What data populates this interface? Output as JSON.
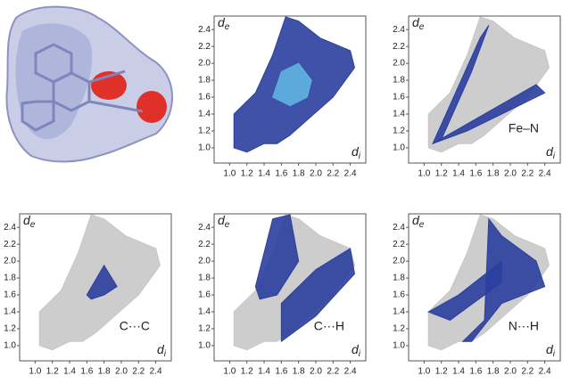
{
  "chart_data": [
    {
      "type": "fingerprint",
      "xlabel": {
        "symbol": "d",
        "subscript": "i"
      },
      "ylabel": {
        "symbol": "d",
        "subscript": "e"
      },
      "xlim": [
        0.82,
        2.58
      ],
      "ylim": [
        0.82,
        2.56
      ],
      "xticks": [
        {
          "value": 1,
          "label": "1.0"
        },
        1.2,
        1.4,
        1.6,
        1.8,
        {
          "value": 2,
          "label": "2.0"
        },
        2.2,
        2.4
      ],
      "yticks": [
        {
          "value": 1,
          "label": "1.0"
        },
        1.2,
        1.4,
        1.6,
        1.8,
        {
          "value": 2,
          "label": "2.0"
        },
        2.2,
        2.4
      ],
      "full": {
        "color": "#2b3f9e",
        "x": [
          1.05,
          1.05,
          1.3,
          1.5,
          1.65,
          1.8,
          2.05,
          2.4,
          2.45,
          2.2,
          1.7,
          1.55,
          1.4,
          1.2
        ],
        "y": [
          1.0,
          1.4,
          1.65,
          2.1,
          2.55,
          2.5,
          2.3,
          2.15,
          1.95,
          1.6,
          1.15,
          1.05,
          1.05,
          0.95
        ]
      },
      "highlights": [
        {
          "color": "#5fb3e0",
          "x": [
            1.5,
            1.6,
            1.8,
            1.95,
            1.9,
            1.7
          ],
          "y": [
            1.6,
            1.9,
            2.0,
            1.8,
            1.6,
            1.5
          ]
        }
      ]
    },
    {
      "type": "fingerprint",
      "label": "Fe–N",
      "xlabel": {
        "symbol": "d",
        "subscript": "i"
      },
      "ylabel": {
        "symbol": "d",
        "subscript": "e"
      },
      "xlim": [
        0.82,
        2.58
      ],
      "ylim": [
        0.82,
        2.56
      ],
      "xticks": [
        {
          "value": 1,
          "label": "1.0"
        },
        1.2,
        1.4,
        1.6,
        1.8,
        {
          "value": 2,
          "label": "2.0"
        },
        2.2,
        2.4
      ],
      "yticks": [
        {
          "value": 1,
          "label": "1.0"
        },
        1.2,
        1.4,
        1.6,
        1.8,
        {
          "value": 2,
          "label": "2.0"
        },
        2.2,
        2.4
      ],
      "full": {
        "color": "#c8c8c8",
        "x": [
          1.05,
          1.05,
          1.3,
          1.5,
          1.65,
          1.8,
          2.05,
          2.4,
          2.45,
          2.2,
          1.7,
          1.55,
          1.4,
          1.2
        ],
        "y": [
          1.0,
          1.4,
          1.65,
          2.1,
          2.55,
          2.5,
          2.3,
          2.15,
          1.95,
          1.6,
          1.15,
          1.05,
          1.05,
          0.95
        ]
      },
      "highlights": [
        {
          "color": "#2b3f9e",
          "x": [
            1.1,
            1.65,
            1.75,
            1.55,
            1.2
          ],
          "y": [
            1.05,
            2.3,
            2.45,
            1.9,
            1.1
          ]
        },
        {
          "color": "#2b3f9e",
          "x": [
            1.1,
            2.3,
            2.4,
            1.5
          ],
          "y": [
            1.05,
            1.75,
            1.65,
            1.2
          ]
        }
      ]
    },
    {
      "type": "fingerprint",
      "label": "C···C",
      "xlabel": {
        "symbol": "d",
        "subscript": "i"
      },
      "ylabel": {
        "symbol": "d",
        "subscript": "e"
      },
      "xlim": [
        0.82,
        2.58
      ],
      "ylim": [
        0.82,
        2.56
      ],
      "xticks": [
        {
          "value": 1,
          "label": "1.0"
        },
        1.2,
        1.4,
        1.6,
        1.8,
        {
          "value": 2,
          "label": "2.0"
        },
        2.2,
        2.4
      ],
      "yticks": [
        {
          "value": 1,
          "label": "1.0"
        },
        1.2,
        1.4,
        1.6,
        1.8,
        {
          "value": 2,
          "label": "2.0"
        },
        2.2,
        2.4
      ],
      "full": {
        "color": "#c8c8c8",
        "x": [
          1.05,
          1.05,
          1.3,
          1.5,
          1.65,
          1.8,
          2.05,
          2.4,
          2.45,
          2.2,
          1.7,
          1.55,
          1.4,
          1.2
        ],
        "y": [
          1.0,
          1.4,
          1.65,
          2.1,
          2.55,
          2.5,
          2.3,
          2.15,
          1.95,
          1.6,
          1.15,
          1.05,
          1.05,
          0.95
        ]
      },
      "highlights": [
        {
          "color": "#2b3f9e",
          "x": [
            1.6,
            1.8,
            1.95,
            1.8,
            1.65
          ],
          "y": [
            1.6,
            1.95,
            1.7,
            1.6,
            1.55
          ]
        }
      ]
    },
    {
      "type": "fingerprint",
      "label": "C···H",
      "xlabel": {
        "symbol": "d",
        "subscript": "i"
      },
      "ylabel": {
        "symbol": "d",
        "subscript": "e"
      },
      "xlim": [
        0.82,
        2.58
      ],
      "ylim": [
        0.82,
        2.56
      ],
      "xticks": [
        {
          "value": 1,
          "label": "1.0"
        },
        1.2,
        1.4,
        1.6,
        1.8,
        {
          "value": 2,
          "label": "2.0"
        },
        2.2,
        2.4
      ],
      "yticks": [
        {
          "value": 1,
          "label": "1.0"
        },
        1.2,
        1.4,
        1.6,
        1.8,
        {
          "value": 2,
          "label": "2.0"
        },
        2.2,
        2.4
      ],
      "full": {
        "color": "#c8c8c8",
        "x": [
          1.05,
          1.05,
          1.3,
          1.5,
          1.65,
          1.8,
          2.05,
          2.4,
          2.45,
          2.2,
          1.7,
          1.55,
          1.4,
          1.2
        ],
        "y": [
          1.0,
          1.4,
          1.65,
          2.1,
          2.55,
          2.5,
          2.3,
          2.15,
          1.95,
          1.6,
          1.15,
          1.05,
          1.05,
          0.95
        ]
      },
      "highlights": [
        {
          "color": "#2b3f9e",
          "x": [
            1.5,
            1.7,
            1.8,
            1.55,
            1.35,
            1.3
          ],
          "y": [
            2.5,
            2.55,
            2.0,
            1.6,
            1.55,
            1.7
          ]
        },
        {
          "color": "#2b3f9e",
          "x": [
            1.6,
            2.0,
            2.4,
            2.45,
            2.0,
            1.6
          ],
          "y": [
            1.5,
            1.9,
            2.15,
            1.85,
            1.35,
            1.05
          ]
        }
      ]
    },
    {
      "type": "fingerprint",
      "label": "N···H",
      "xlabel": {
        "symbol": "d",
        "subscript": "i"
      },
      "ylabel": {
        "symbol": "d",
        "subscript": "e"
      },
      "xlim": [
        0.82,
        2.58
      ],
      "ylim": [
        0.82,
        2.56
      ],
      "xticks": [
        {
          "value": 1,
          "label": "1.0"
        },
        1.2,
        1.4,
        1.6,
        1.8,
        {
          "value": 2,
          "label": "2.0"
        },
        2.2,
        2.4
      ],
      "yticks": [
        {
          "value": 1,
          "label": "1.0"
        },
        1.2,
        1.4,
        1.6,
        1.8,
        {
          "value": 2,
          "label": "2.0"
        },
        2.2,
        2.4
      ],
      "full": {
        "color": "#c8c8c8",
        "x": [
          1.05,
          1.05,
          1.3,
          1.5,
          1.65,
          1.8,
          2.05,
          2.4,
          2.45,
          2.2,
          1.7,
          1.55,
          1.4,
          1.2
        ],
        "y": [
          1.0,
          1.4,
          1.65,
          2.1,
          2.55,
          2.5,
          2.3,
          2.15,
          1.95,
          1.6,
          1.15,
          1.05,
          1.05,
          0.95
        ]
      },
      "highlights": [
        {
          "color": "#2b3f9e",
          "x": [
            1.05,
            1.4,
            1.9,
            1.9,
            1.3
          ],
          "y": [
            1.4,
            1.6,
            2.0,
            1.75,
            1.3
          ]
        },
        {
          "color": "#2b3f9e",
          "x": [
            1.45,
            1.7,
            1.75,
            1.9,
            2.3,
            2.4,
            1.9,
            1.55
          ],
          "y": [
            1.05,
            1.3,
            2.5,
            2.3,
            2.0,
            1.7,
            1.5,
            1.05
          ]
        }
      ]
    }
  ]
}
